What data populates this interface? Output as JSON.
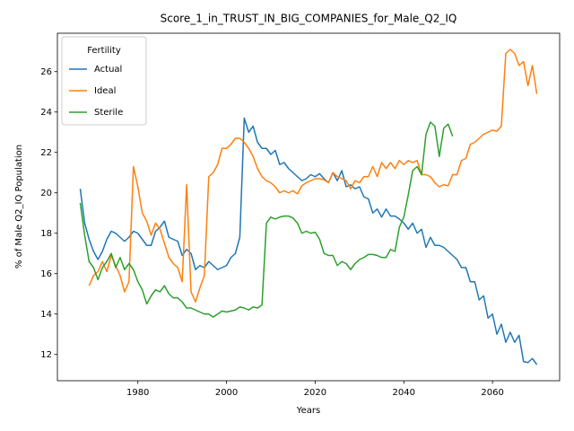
{
  "chart_data": {
    "type": "line",
    "title": "Score_1_in_TRUST_IN_BIG_COMPANIES_for_Male_Q2_IQ",
    "x_label": "Years",
    "y_label": "% of Male Q2_IQ Population",
    "legend_title": "Fertility",
    "legend": "upper left",
    "xlim": [
      1961.85,
      2075.15
    ],
    "ylim": [
      10.7,
      27.9
    ],
    "xticks": [
      1980,
      2000,
      2020,
      2040,
      2060
    ],
    "yticks": [
      12,
      14,
      16,
      18,
      20,
      22,
      24,
      26
    ],
    "x": [
      1967,
      1968,
      1969,
      1970,
      1971,
      1972,
      1973,
      1974,
      1975,
      1976,
      1977,
      1978,
      1979,
      1980,
      1981,
      1982,
      1983,
      1984,
      1985,
      1986,
      1987,
      1988,
      1989,
      1990,
      1991,
      1992,
      1993,
      1994,
      1995,
      1996,
      1997,
      1998,
      1999,
      2000,
      2001,
      2002,
      2003,
      2004,
      2005,
      2006,
      2007,
      2008,
      2009,
      2010,
      2011,
      2012,
      2013,
      2014,
      2015,
      2016,
      2017,
      2018,
      2019,
      2020,
      2021,
      2022,
      2023,
      2024,
      2025,
      2026,
      2027,
      2028,
      2029,
      2030,
      2031,
      2032,
      2033,
      2034,
      2035,
      2036,
      2037,
      2038,
      2039,
      2040,
      2041,
      2042,
      2043,
      2044,
      2045,
      2046,
      2047,
      2048,
      2049,
      2050,
      2051,
      2052,
      2053,
      2054,
      2055,
      2056,
      2057,
      2058,
      2059,
      2060,
      2061,
      2062,
      2063,
      2064,
      2065,
      2066,
      2067,
      2068,
      2069,
      2070
    ],
    "series": [
      {
        "name": "Actual",
        "color": "#1f77b4",
        "values": [
          20.2,
          18.5,
          17.7,
          17.1,
          16.7,
          17.1,
          17.7,
          18.1,
          18.0,
          17.8,
          17.6,
          17.8,
          18.1,
          18.0,
          17.7,
          17.4,
          17.4,
          18.1,
          18.3,
          18.6,
          17.8,
          17.7,
          17.6,
          16.9,
          17.2,
          17.0,
          16.2,
          16.4,
          16.3,
          16.6,
          16.4,
          16.2,
          16.3,
          16.4,
          16.8,
          17.0,
          17.8,
          23.7,
          23.0,
          23.3,
          22.5,
          22.2,
          22.2,
          21.9,
          22.1,
          21.4,
          21.5,
          21.2,
          21.0,
          20.8,
          20.6,
          20.7,
          20.9,
          20.8,
          20.95,
          20.7,
          20.5,
          21.0,
          20.6,
          21.1,
          20.3,
          20.4,
          20.2,
          20.3,
          19.8,
          19.7,
          19.0,
          19.2,
          18.8,
          19.2,
          18.85,
          18.85,
          18.7,
          18.5,
          18.2,
          18.5,
          18.0,
          18.2,
          17.3,
          17.8,
          17.4,
          17.4,
          17.3,
          17.1,
          16.9,
          16.7,
          16.3,
          16.3,
          15.6,
          15.6,
          14.7,
          14.9,
          13.8,
          14.0,
          13.0,
          13.5,
          12.6,
          13.1,
          12.6,
          12.95,
          11.65,
          11.6,
          11.8,
          11.5
        ]
      },
      {
        "name": "Ideal",
        "color": "#ff7f0e",
        "values": [
          null,
          null,
          15.4,
          15.9,
          16.1,
          16.6,
          16.1,
          16.9,
          16.4,
          15.9,
          15.1,
          15.6,
          21.3,
          20.3,
          19.0,
          18.6,
          17.9,
          18.5,
          18.2,
          17.5,
          16.8,
          16.5,
          16.3,
          15.6,
          20.4,
          15.1,
          14.6,
          15.3,
          15.9,
          20.8,
          21.0,
          21.4,
          22.2,
          22.2,
          22.4,
          22.7,
          22.7,
          22.5,
          22.2,
          21.8,
          21.2,
          20.8,
          20.6,
          20.5,
          20.3,
          20.0,
          20.1,
          20.0,
          20.1,
          19.95,
          20.35,
          20.5,
          20.6,
          20.7,
          20.7,
          20.65,
          20.5,
          21.0,
          20.8,
          20.7,
          20.6,
          20.2,
          20.6,
          20.5,
          20.8,
          20.8,
          21.3,
          20.8,
          21.5,
          21.2,
          21.5,
          21.2,
          21.6,
          21.4,
          21.6,
          21.5,
          21.6,
          20.9,
          20.9,
          20.8,
          20.5,
          20.3,
          20.4,
          20.35,
          20.9,
          20.9,
          21.6,
          21.7,
          22.4,
          22.5,
          22.7,
          22.9,
          23.0,
          23.1,
          23.05,
          23.3,
          26.9,
          27.1,
          26.9,
          26.3,
          26.5,
          25.3,
          26.3,
          24.9
        ]
      },
      {
        "name": "Sterile",
        "color": "#2ca02c",
        "values": [
          19.5,
          17.9,
          16.6,
          16.3,
          15.7,
          16.3,
          16.6,
          17.0,
          16.3,
          16.8,
          16.2,
          16.5,
          16.2,
          15.6,
          15.2,
          14.5,
          14.9,
          15.2,
          15.1,
          15.4,
          15.0,
          14.8,
          14.8,
          14.6,
          14.3,
          14.3,
          14.2,
          14.1,
          14.0,
          14.0,
          13.85,
          14.0,
          14.15,
          14.1,
          14.15,
          14.2,
          14.35,
          14.3,
          14.2,
          14.35,
          14.3,
          14.45,
          18.5,
          18.8,
          18.7,
          18.8,
          18.85,
          18.85,
          18.75,
          18.5,
          18.0,
          18.1,
          18.0,
          18.05,
          17.7,
          17.0,
          16.9,
          16.9,
          16.4,
          16.6,
          16.5,
          16.2,
          16.5,
          16.7,
          16.8,
          16.95,
          16.95,
          16.9,
          16.8,
          16.8,
          17.2,
          17.1,
          18.3,
          18.8,
          19.9,
          21.1,
          21.3,
          20.9,
          22.9,
          23.5,
          23.3,
          21.8,
          23.2,
          23.4,
          22.8,
          null,
          null,
          null,
          null,
          null,
          null,
          null,
          null,
          null,
          null,
          null,
          null,
          null,
          null,
          null,
          null,
          null,
          null,
          null
        ]
      }
    ]
  }
}
